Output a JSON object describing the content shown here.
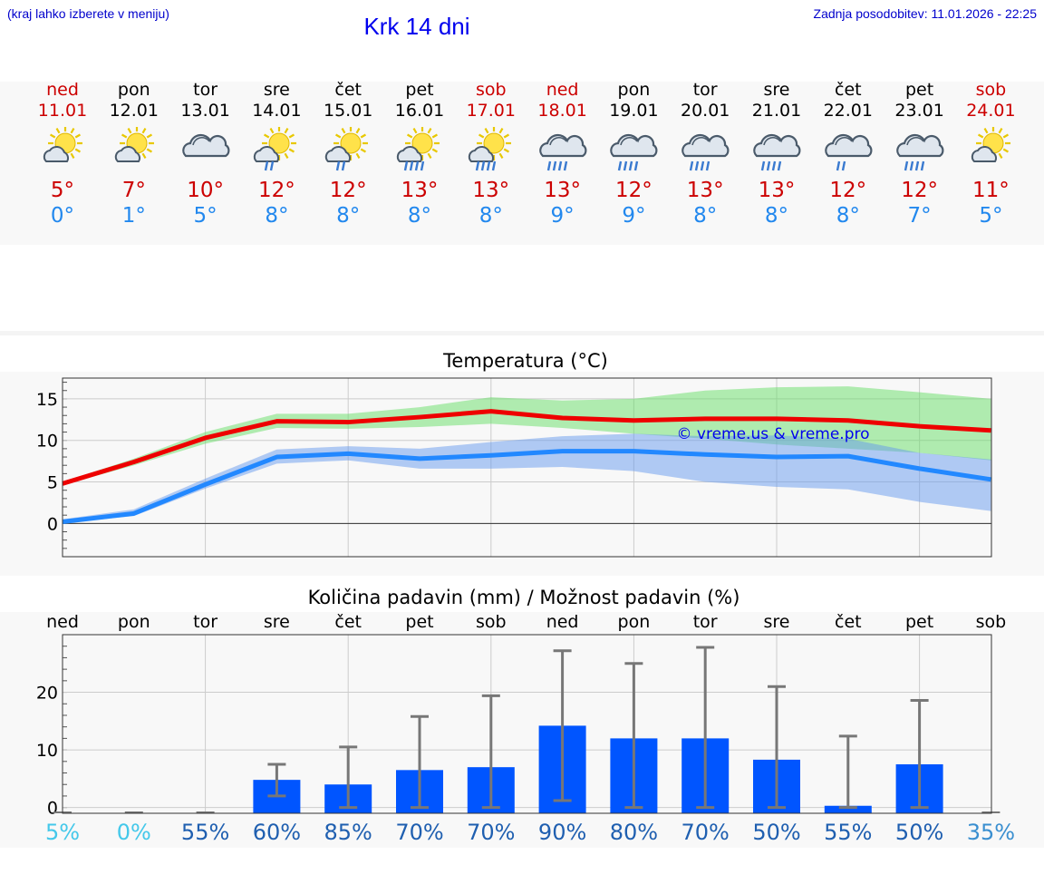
{
  "header": {
    "hint": "(kraj lahko izberete v meniju)",
    "title": "Krk 14 dni",
    "updated": "Zadnja posodobitev: 11.01.2026 - 22:25"
  },
  "days": [
    {
      "name": "ned",
      "date": "11.01",
      "icon": "sun-cloud-icon",
      "tmax": "5°",
      "tmin": "0°",
      "weekend": true
    },
    {
      "name": "pon",
      "date": "12.01",
      "icon": "sun-cloud-icon",
      "tmax": "7°",
      "tmin": "1°",
      "weekend": false
    },
    {
      "name": "tor",
      "date": "13.01",
      "icon": "cloud-icon",
      "tmax": "10°",
      "tmin": "5°",
      "weekend": false
    },
    {
      "name": "sre",
      "date": "14.01",
      "icon": "sun-cloud-rain-icon",
      "tmax": "12°",
      "tmin": "8°",
      "weekend": false
    },
    {
      "name": "čet",
      "date": "15.01",
      "icon": "sun-cloud-rain-icon",
      "tmax": "12°",
      "tmin": "8°",
      "weekend": false
    },
    {
      "name": "pet",
      "date": "16.01",
      "icon": "sun-cloud-heavy-rain-icon",
      "tmax": "13°",
      "tmin": "8°",
      "weekend": false
    },
    {
      "name": "sob",
      "date": "17.01",
      "icon": "sun-cloud-heavy-rain-icon",
      "tmax": "13°",
      "tmin": "8°",
      "weekend": true
    },
    {
      "name": "ned",
      "date": "18.01",
      "icon": "cloud-heavy-rain-icon",
      "tmax": "13°",
      "tmin": "9°",
      "weekend": true
    },
    {
      "name": "pon",
      "date": "19.01",
      "icon": "cloud-heavy-rain-icon",
      "tmax": "12°",
      "tmin": "9°",
      "weekend": false
    },
    {
      "name": "tor",
      "date": "20.01",
      "icon": "cloud-heavy-rain-icon",
      "tmax": "13°",
      "tmin": "8°",
      "weekend": false
    },
    {
      "name": "sre",
      "date": "21.01",
      "icon": "cloud-heavy-rain-icon",
      "tmax": "13°",
      "tmin": "8°",
      "weekend": false
    },
    {
      "name": "čet",
      "date": "22.01",
      "icon": "cloud-rain-icon",
      "tmax": "12°",
      "tmin": "8°",
      "weekend": false
    },
    {
      "name": "pet",
      "date": "23.01",
      "icon": "cloud-heavy-rain-icon",
      "tmax": "12°",
      "tmin": "7°",
      "weekend": false
    },
    {
      "name": "sob",
      "date": "24.01",
      "icon": "sun-cloud-icon",
      "tmax": "11°",
      "tmin": "5°",
      "weekend": true
    }
  ],
  "chart_data": [
    {
      "type": "line",
      "title": "Temperatura (°C)",
      "watermark": "© vreme.us & vreme.pro",
      "x": [
        0,
        1,
        2,
        3,
        4,
        5,
        6,
        7,
        8,
        9,
        10,
        11,
        12,
        13
      ],
      "ylim": [
        -4,
        17.5
      ],
      "yticks": [
        0,
        5,
        10,
        15
      ],
      "grid": true,
      "series": [
        {
          "name": "max",
          "color": "#ee0000",
          "values": [
            4.8,
            7.4,
            10.3,
            12.3,
            12.2,
            12.8,
            13.5,
            12.7,
            12.4,
            12.6,
            12.6,
            12.4,
            11.7,
            11.2
          ],
          "band_low": [
            4.6,
            7.0,
            9.6,
            11.5,
            11.4,
            11.6,
            12.0,
            11.5,
            10.8,
            10.2,
            9.5,
            9.0,
            8.5,
            7.6
          ],
          "band_high": [
            5.0,
            7.8,
            11.0,
            13.2,
            13.2,
            14.0,
            15.2,
            14.8,
            15.0,
            16.0,
            16.4,
            16.5,
            15.8,
            15.0
          ],
          "band_color": "#66dd66"
        },
        {
          "name": "min",
          "color": "#2288ff",
          "values": [
            0.2,
            1.2,
            4.7,
            8.0,
            8.4,
            7.8,
            8.2,
            8.7,
            8.7,
            8.3,
            8.0,
            8.1,
            6.6,
            5.3
          ],
          "band_low": [
            0.0,
            0.9,
            4.2,
            7.2,
            7.6,
            6.6,
            6.6,
            6.8,
            6.3,
            5.0,
            4.4,
            4.1,
            2.6,
            1.5
          ],
          "band_high": [
            0.5,
            1.7,
            5.4,
            8.9,
            9.3,
            9.0,
            9.8,
            10.5,
            10.8,
            10.5,
            10.6,
            10.2,
            8.5,
            7.7
          ],
          "band_color": "#6699ee"
        }
      ]
    },
    {
      "type": "bar",
      "title": "Količina padavin (mm) / Možnost padavin (%)",
      "categories": [
        "ned",
        "pon",
        "tor",
        "sre",
        "čet",
        "pet",
        "sob",
        "ned",
        "pon",
        "tor",
        "sre",
        "čet",
        "pet",
        "sob"
      ],
      "values": [
        0,
        0,
        0,
        4.8,
        4.0,
        6.5,
        7.0,
        14.2,
        12.0,
        12.0,
        8.3,
        0.3,
        7.5,
        0
      ],
      "err_low": [
        0,
        0,
        0,
        2.0,
        0,
        0,
        0,
        1.2,
        0,
        0,
        0,
        0,
        0,
        0
      ],
      "err_high": [
        0,
        0,
        0,
        7.5,
        10.5,
        15.8,
        19.4,
        27.2,
        25.0,
        27.8,
        21.0,
        12.4,
        18.6,
        0
      ],
      "probability": [
        "5%",
        "0%",
        "55%",
        "60%",
        "85%",
        "70%",
        "70%",
        "90%",
        "80%",
        "70%",
        "50%",
        "55%",
        "50%",
        "35%"
      ],
      "probability_value": [
        5,
        0,
        55,
        60,
        85,
        70,
        70,
        90,
        80,
        70,
        50,
        55,
        50,
        35
      ],
      "ylim": [
        -1,
        30
      ],
      "yticks": [
        0,
        10,
        20
      ],
      "bar_color": "#0055ff",
      "err_color": "#777777"
    }
  ]
}
